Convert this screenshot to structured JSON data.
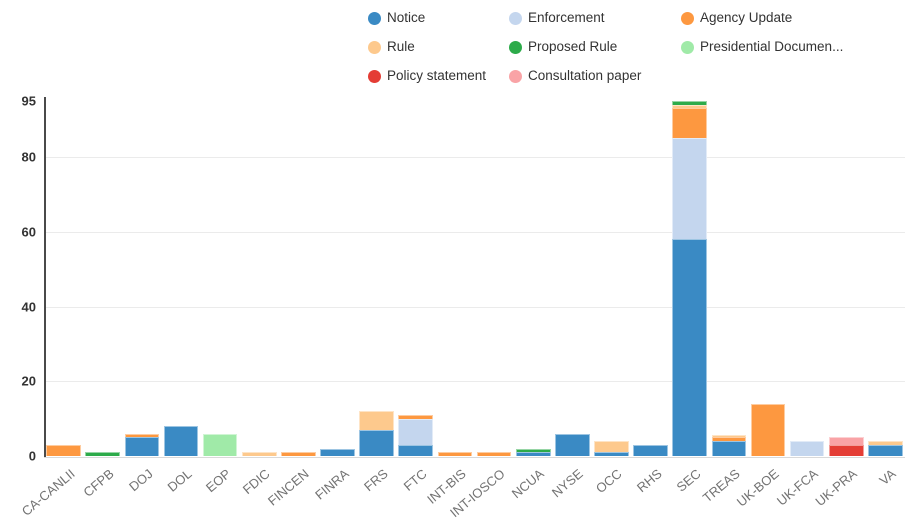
{
  "chart_data": {
    "type": "bar",
    "stacked": true,
    "title": "",
    "xlabel": "",
    "ylabel": "",
    "grid": true,
    "legend_position": "top",
    "ylim": [
      0,
      95
    ],
    "yticks": [
      0,
      20,
      40,
      60,
      80,
      95
    ],
    "categories": [
      "CA-CANLII",
      "CFPB",
      "DOJ",
      "DOL",
      "EOP",
      "FDIC",
      "FINCEN",
      "FINRA",
      "FRS",
      "FTC",
      "INT-BIS",
      "INT-IOSCO",
      "NCUA",
      "NYSE",
      "OCC",
      "RHS",
      "SEC",
      "TREAS",
      "UK-BOE",
      "UK-FCA",
      "UK-PRA",
      "VA"
    ],
    "series": [
      {
        "name": "Notice",
        "legend_label": "Notice",
        "color": "#3a8ac4",
        "values": [
          0,
          0,
          5,
          8,
          0,
          0,
          0,
          2,
          7,
          3,
          0,
          0,
          1,
          6,
          1,
          3,
          58,
          4,
          0,
          0,
          0,
          3
        ]
      },
      {
        "name": "Enforcement",
        "legend_label": "Enforcement",
        "color": "#c4d6ee",
        "values": [
          0,
          0,
          0,
          0,
          0,
          0,
          0,
          0,
          0,
          7,
          0,
          0,
          0,
          0,
          0,
          0,
          27,
          0,
          0,
          4,
          0,
          0
        ]
      },
      {
        "name": "Agency Update",
        "legend_label": "Agency Update",
        "color": "#fd9840",
        "values": [
          3,
          0,
          1,
          0,
          0,
          0,
          1,
          0,
          0,
          1,
          1,
          1,
          0,
          0,
          0,
          0,
          8,
          1,
          14,
          0,
          0,
          0
        ]
      },
      {
        "name": "Rule",
        "legend_label": "Rule",
        "color": "#fdc98d",
        "values": [
          0,
          0,
          0,
          0,
          0,
          1,
          0,
          0,
          5,
          0,
          0,
          0,
          0,
          0,
          3,
          0,
          1,
          0.5,
          0,
          0,
          0,
          1
        ]
      },
      {
        "name": "Proposed Rule",
        "legend_label": "Proposed Rule",
        "color": "#2dab4a",
        "values": [
          0,
          1,
          0,
          0,
          0,
          0,
          0,
          0,
          0,
          0,
          0,
          0,
          1,
          0,
          0,
          0,
          1,
          0,
          0,
          0,
          0,
          0
        ]
      },
      {
        "name": "Presidential Document",
        "legend_label": "Presidential Documen...",
        "color": "#a0eaa8",
        "values": [
          0,
          0,
          0,
          0,
          6,
          0,
          0,
          0,
          0,
          0,
          0,
          0,
          0,
          0,
          0,
          0,
          0,
          0,
          0,
          0,
          0,
          0
        ]
      },
      {
        "name": "Policy statement",
        "legend_label": "Policy statement",
        "color": "#e43d35",
        "values": [
          0,
          0,
          0,
          0,
          0,
          0,
          0,
          0,
          0,
          0,
          0,
          0,
          0,
          0,
          0,
          0,
          0,
          0,
          0,
          0,
          3,
          0
        ]
      },
      {
        "name": "Consultation paper",
        "legend_label": "Consultation paper",
        "color": "#f9a3a6",
        "values": [
          0,
          0,
          0,
          0,
          0,
          0,
          0,
          0,
          0,
          0,
          0,
          0,
          0,
          0,
          0,
          0,
          0,
          0,
          0,
          0,
          2,
          0
        ]
      }
    ]
  },
  "axis": {
    "y_tick_labels": [
      "0",
      "20",
      "40",
      "60",
      "80",
      "95"
    ]
  }
}
